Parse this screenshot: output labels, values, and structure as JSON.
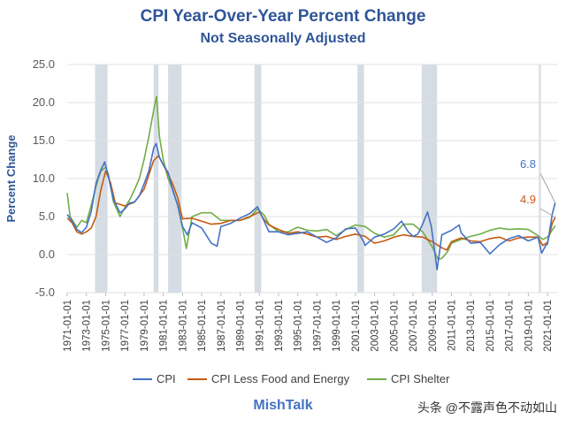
{
  "header": {
    "title": "CPI Year-Over-Year Percent Change",
    "subtitle": "Not Seasonally Adjusted"
  },
  "footer": {
    "source": "MishTalk",
    "watermark": "头条 @不露声色不动如山"
  },
  "colors": {
    "cpi": "#4472c4",
    "core": "#c55a11",
    "shelter": "#70ad47",
    "recession": "#d6dce4",
    "grid": "#e0e0e0"
  },
  "chart_data": {
    "type": "line",
    "ylabel": "Percent Change",
    "ylim": [
      -5,
      25
    ],
    "yticks": [
      "25.0",
      "20.0",
      "15.0",
      "10.0",
      "5.0",
      "0.0",
      "-5.0"
    ],
    "yticks_values": [
      25,
      20,
      15,
      10,
      5,
      0,
      -5
    ],
    "xlim": [
      1971.0,
      2022.0
    ],
    "xticks": [
      "1971-01-01",
      "1973-01-01",
      "1975-01-01",
      "1977-01-01",
      "1979-01-01",
      "1981-01-01",
      "1983-01-01",
      "1985-01-01",
      "1987-01-01",
      "1989-01-01",
      "1991-01-01",
      "1993-01-01",
      "1995-01-01",
      "1997-01-01",
      "1999-01-01",
      "2001-01-01",
      "2003-01-01",
      "2005-01-01",
      "2007-01-01",
      "2009-01-01",
      "2011-01-01",
      "2013-01-01",
      "2015-01-01",
      "2017-01-01",
      "2019-01-01",
      "2021-01-01"
    ],
    "grid": "horizontal",
    "legend_position": "bottom",
    "recessions": [
      [
        1973.9,
        1975.2
      ],
      [
        1980.0,
        1980.5
      ],
      [
        1981.5,
        1982.9
      ],
      [
        1990.5,
        1991.2
      ],
      [
        2001.2,
        2001.9
      ],
      [
        2007.9,
        2009.5
      ],
      [
        2020.1,
        2020.3
      ]
    ],
    "series": [
      {
        "name": "CPI",
        "x": [
          1971,
          1971.5,
          1972,
          1972.5,
          1973,
          1973.5,
          1974,
          1974.5,
          1974.9,
          1975.3,
          1975.8,
          1976.5,
          1977,
          1977.5,
          1978,
          1978.5,
          1979,
          1979.5,
          1980.0,
          1980.25,
          1980.6,
          1981,
          1981.5,
          1982,
          1982.5,
          1983,
          1983.5,
          1984,
          1985,
          1986,
          1986.6,
          1987,
          1988,
          1989,
          1990,
          1990.8,
          1991.5,
          1992,
          1993,
          1994,
          1995,
          1996,
          1997,
          1998,
          1999,
          2000,
          2001,
          2001.9,
          2002,
          2003,
          2004,
          2005,
          2005.8,
          2006.5,
          2007,
          2007.5,
          2008,
          2008.5,
          2008.9,
          2009.5,
          2010,
          2011,
          2011.8,
          2012,
          2013,
          2014,
          2015,
          2016,
          2017,
          2018,
          2019,
          2020,
          2020.4,
          2020.8,
          2021,
          2021.5,
          2021.8
        ],
        "y": [
          5.3,
          4.4,
          3.3,
          2.9,
          3.6,
          5.7,
          9.4,
          11.1,
          12.2,
          10.2,
          7.3,
          5.5,
          6.0,
          6.8,
          6.9,
          7.7,
          9.3,
          11.0,
          14.0,
          14.6,
          12.8,
          11.8,
          10.8,
          8.4,
          6.5,
          3.7,
          2.6,
          4.2,
          3.5,
          1.5,
          1.1,
          3.7,
          4.1,
          4.8,
          5.4,
          6.3,
          4.4,
          3.0,
          3.0,
          2.6,
          2.8,
          3.0,
          2.3,
          1.6,
          2.2,
          3.4,
          3.5,
          1.6,
          1.2,
          2.3,
          2.7,
          3.4,
          4.4,
          3.0,
          2.4,
          2.7,
          4.0,
          5.6,
          3.7,
          -2.0,
          2.6,
          3.2,
          3.9,
          2.9,
          1.5,
          1.6,
          0.1,
          1.3,
          2.1,
          2.5,
          1.8,
          2.3,
          0.2,
          1.2,
          1.4,
          5.4,
          6.8
        ]
      },
      {
        "name": "CPI Less Food and Energy",
        "x": [
          1971,
          1971.5,
          1972,
          1972.5,
          1973,
          1973.5,
          1974,
          1974.5,
          1975,
          1975.5,
          1976,
          1977,
          1978,
          1979,
          1980,
          1980.5,
          1981,
          1981.5,
          1982,
          1982.5,
          1983,
          1984,
          1985,
          1986,
          1987,
          1988,
          1989,
          1990,
          1991,
          1991.5,
          1992,
          1993,
          1994,
          1995,
          1996,
          1997,
          1998,
          1999,
          2000,
          2001,
          2002,
          2003,
          2004,
          2005,
          2006,
          2007,
          2008,
          2009,
          2010,
          2010.5,
          2011,
          2012,
          2013,
          2014,
          2015,
          2016,
          2017,
          2018,
          2019,
          2020,
          2020.5,
          2021,
          2021.5,
          2021.8
        ],
        "y": [
          4.8,
          4.2,
          3.0,
          2.7,
          3.0,
          3.5,
          5.0,
          8.5,
          11.0,
          9.5,
          6.8,
          6.4,
          6.9,
          8.6,
          12.4,
          13.0,
          11.8,
          10.6,
          9.2,
          7.5,
          4.7,
          4.8,
          4.4,
          4.0,
          4.1,
          4.5,
          4.5,
          5.0,
          5.6,
          4.6,
          3.9,
          3.3,
          2.8,
          3.0,
          2.7,
          2.3,
          2.4,
          2.0,
          2.4,
          2.7,
          2.4,
          1.5,
          1.8,
          2.3,
          2.6,
          2.4,
          2.3,
          1.7,
          0.9,
          0.6,
          1.7,
          2.2,
          1.8,
          1.7,
          2.1,
          2.3,
          1.8,
          2.2,
          2.3,
          2.3,
          1.2,
          1.6,
          4.2,
          4.9
        ]
      },
      {
        "name": "CPI Shelter",
        "x": [
          1971,
          1971.3,
          1972,
          1972.5,
          1973,
          1973.5,
          1974,
          1974.5,
          1975,
          1975.3,
          1975.8,
          1976.5,
          1977,
          1977.5,
          1978,
          1978.5,
          1979,
          1979.5,
          1980.0,
          1980.3,
          1980.6,
          1981,
          1981.5,
          1982,
          1982.5,
          1983,
          1983.4,
          1984,
          1985,
          1986,
          1987,
          1988,
          1989,
          1990,
          1990.8,
          1991.5,
          1992,
          1993,
          1994,
          1995,
          1996,
          1997,
          1998,
          1999,
          2000,
          2001,
          2002,
          2003,
          2004,
          2005,
          2006,
          2007,
          2008,
          2009,
          2009.6,
          2010,
          2010.6,
          2011,
          2012,
          2013,
          2014,
          2015,
          2016,
          2017,
          2018,
          2019,
          2020,
          2020.5,
          2021,
          2021.8
        ],
        "y": [
          8.1,
          5.0,
          3.6,
          4.5,
          4.2,
          6.5,
          9.0,
          11.0,
          11.5,
          10.5,
          7.0,
          5.0,
          6.2,
          7.2,
          8.5,
          10.0,
          12.5,
          15.5,
          19.0,
          20.8,
          15.5,
          12.5,
          10.0,
          8.5,
          6.5,
          3.5,
          0.8,
          5.0,
          5.5,
          5.5,
          4.5,
          4.5,
          4.5,
          4.9,
          6.0,
          5.2,
          4.0,
          3.0,
          3.0,
          3.6,
          3.2,
          3.1,
          3.3,
          2.5,
          3.3,
          3.9,
          3.7,
          2.8,
          2.3,
          2.6,
          4.0,
          4.0,
          3.0,
          1.0,
          -0.6,
          -0.5,
          0.4,
          1.5,
          2.0,
          2.4,
          2.7,
          3.2,
          3.5,
          3.3,
          3.4,
          3.3,
          2.5,
          2.0,
          2.3,
          3.8
        ]
      }
    ],
    "annotations": [
      {
        "text": "6.8",
        "x": 2021.8,
        "y": 6.8,
        "series": "CPI"
      },
      {
        "text": "4.9",
        "x": 2021.8,
        "y": 4.9,
        "series": "CPI Less Food and Energy"
      }
    ]
  }
}
